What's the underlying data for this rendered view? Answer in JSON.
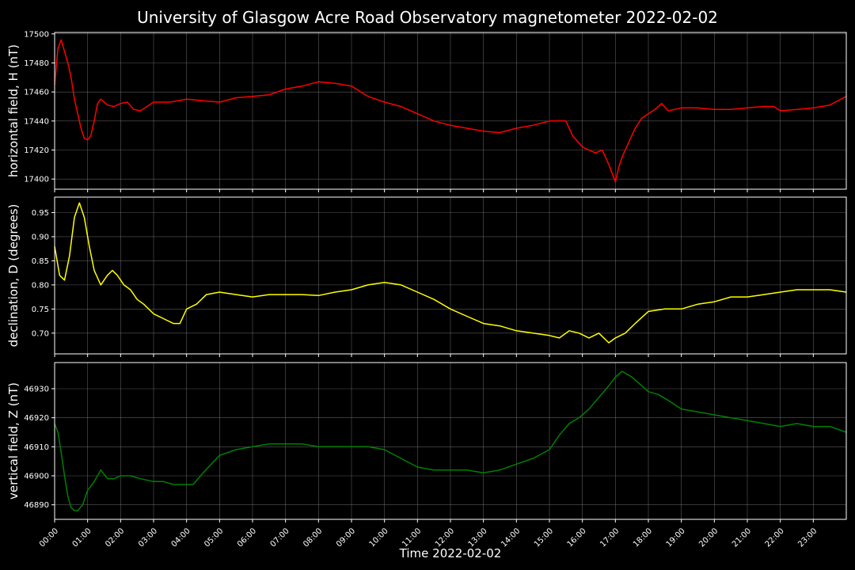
{
  "figure": {
    "title": "University of Glasgow Acre Road Observatory magnetometer 2022-02-02",
    "xlabel": "Time 2022-02-02",
    "background": "#000000",
    "grid_color": "#808080"
  },
  "chart_data": [
    {
      "type": "line",
      "ylabel": "horizontal field, H (nT)",
      "color": "#ff0000",
      "ylim": [
        17393,
        17501
      ],
      "yticks": [
        17400,
        17420,
        17440,
        17460,
        17480,
        17500
      ],
      "xlim": [
        0,
        24
      ],
      "grid": true,
      "series": [
        {
          "x": [
            0,
            0.1,
            0.2,
            0.3,
            0.4,
            0.5,
            0.6,
            0.7,
            0.8,
            0.9,
            1.0,
            1.1,
            1.2,
            1.3,
            1.4,
            1.5,
            1.6,
            1.8,
            2.0,
            2.2,
            2.4,
            2.6,
            2.8,
            3.0,
            3.5,
            4.0,
            4.5,
            5.0,
            5.5,
            6.0,
            6.5,
            7.0,
            7.5,
            8.0,
            8.5,
            9.0,
            9.5,
            10.0,
            10.5,
            11.0,
            11.5,
            12.0,
            12.5,
            13.0,
            13.5,
            14.0,
            14.5,
            15.0,
            15.3,
            15.5,
            15.7,
            16.0,
            16.2,
            16.4,
            16.6,
            16.8,
            17.0,
            17.1,
            17.2,
            17.4,
            17.6,
            17.8,
            18.0,
            18.2,
            18.4,
            18.6,
            19.0,
            19.5,
            20.0,
            20.5,
            21.0,
            21.5,
            21.8,
            22.0,
            22.5,
            23.0,
            23.5,
            24.0
          ],
          "values": [
            17465,
            17490,
            17496,
            17488,
            17480,
            17470,
            17455,
            17445,
            17435,
            17428,
            17427,
            17430,
            17440,
            17452,
            17455,
            17453,
            17451,
            17450,
            17452,
            17453,
            17448,
            17447,
            17450,
            17453,
            17453,
            17455,
            17454,
            17453,
            17456,
            17457,
            17458,
            17462,
            17464,
            17467,
            17466,
            17464,
            17457,
            17453,
            17450,
            17445,
            17440,
            17437,
            17435,
            17433,
            17432,
            17435,
            17437,
            17440,
            17440,
            17440,
            17430,
            17422,
            17420,
            17418,
            17420,
            17410,
            17398,
            17408,
            17415,
            17425,
            17435,
            17442,
            17445,
            17448,
            17452,
            17447,
            17449,
            17449,
            17448,
            17448,
            17449,
            17450,
            17450,
            17447,
            17448,
            17449,
            17451,
            17457
          ]
        }
      ]
    },
    {
      "type": "line",
      "ylabel": "declination, D (degrees)",
      "color": "#ffff00",
      "ylim": [
        0.657,
        0.982
      ],
      "yticks": [
        0.7,
        0.75,
        0.8,
        0.85,
        0.9,
        0.95
      ],
      "xlim": [
        0,
        24
      ],
      "grid": true,
      "series": [
        {
          "x": [
            0,
            0.15,
            0.3,
            0.45,
            0.6,
            0.75,
            0.9,
            1.05,
            1.2,
            1.4,
            1.6,
            1.75,
            1.9,
            2.1,
            2.3,
            2.5,
            2.7,
            3.0,
            3.3,
            3.6,
            3.8,
            4.0,
            4.3,
            4.6,
            5.0,
            5.5,
            6.0,
            6.5,
            7.0,
            7.5,
            8.0,
            8.5,
            9.0,
            9.5,
            10.0,
            10.5,
            11.0,
            11.5,
            12.0,
            12.5,
            13.0,
            13.5,
            14.0,
            14.5,
            15.0,
            15.3,
            15.6,
            15.9,
            16.2,
            16.5,
            16.8,
            17.0,
            17.3,
            17.6,
            18.0,
            18.5,
            19.0,
            19.5,
            20.0,
            20.5,
            21.0,
            21.5,
            22.0,
            22.5,
            23.0,
            23.5,
            24.0
          ],
          "values": [
            0.88,
            0.82,
            0.81,
            0.86,
            0.94,
            0.97,
            0.94,
            0.88,
            0.83,
            0.8,
            0.82,
            0.83,
            0.82,
            0.8,
            0.79,
            0.77,
            0.76,
            0.74,
            0.73,
            0.72,
            0.72,
            0.75,
            0.76,
            0.78,
            0.785,
            0.78,
            0.775,
            0.78,
            0.78,
            0.78,
            0.778,
            0.785,
            0.79,
            0.8,
            0.805,
            0.8,
            0.785,
            0.77,
            0.75,
            0.735,
            0.72,
            0.715,
            0.705,
            0.7,
            0.695,
            0.69,
            0.705,
            0.7,
            0.69,
            0.7,
            0.68,
            0.69,
            0.7,
            0.72,
            0.745,
            0.75,
            0.75,
            0.76,
            0.765,
            0.775,
            0.775,
            0.78,
            0.785,
            0.79,
            0.79,
            0.79,
            0.785
          ]
        }
      ]
    },
    {
      "type": "line",
      "ylabel": "vertical field, Z (nT)",
      "color": "#008000",
      "ylim": [
        46885,
        46939
      ],
      "yticks": [
        46890,
        46900,
        46910,
        46920,
        46930
      ],
      "xlim": [
        0,
        24
      ],
      "grid": true,
      "series": [
        {
          "x": [
            0,
            0.1,
            0.2,
            0.3,
            0.4,
            0.5,
            0.6,
            0.7,
            0.85,
            1.0,
            1.2,
            1.4,
            1.6,
            1.8,
            2.0,
            2.3,
            2.6,
            3.0,
            3.3,
            3.6,
            3.9,
            4.2,
            4.5,
            5.0,
            5.5,
            6.0,
            6.5,
            7.0,
            7.5,
            8.0,
            8.5,
            9.0,
            9.5,
            10.0,
            10.5,
            11.0,
            11.5,
            12.0,
            12.5,
            13.0,
            13.5,
            14.0,
            14.5,
            15.0,
            15.3,
            15.6,
            15.9,
            16.2,
            16.5,
            16.8,
            17.0,
            17.2,
            17.5,
            17.8,
            18.0,
            18.3,
            18.6,
            19.0,
            19.5,
            20.0,
            20.5,
            21.0,
            21.5,
            22.0,
            22.5,
            23.0,
            23.5,
            24.0
          ],
          "values": [
            46918,
            46915,
            46908,
            46900,
            46893,
            46889,
            46888,
            46888,
            46890,
            46895,
            46898,
            46902,
            46899,
            46899,
            46900,
            46900,
            46899,
            46898,
            46898,
            46897,
            46897,
            46897,
            46901,
            46907,
            46909,
            46910,
            46911,
            46911,
            46911,
            46910,
            46910,
            46910,
            46910,
            46909,
            46906,
            46903,
            46902,
            46902,
            46902,
            46901,
            46902,
            46904,
            46906,
            46909,
            46914,
            46918,
            46920,
            46923,
            46927,
            46931,
            46934,
            46936,
            46934,
            46931,
            46929,
            46928,
            46926,
            46923,
            46922,
            46921,
            46920,
            46919,
            46918,
            46917,
            46918,
            46917,
            46917,
            46915
          ]
        }
      ]
    }
  ],
  "x_axis": {
    "tick_labels": [
      "00:00",
      "01:00",
      "02:00",
      "03:00",
      "04:00",
      "05:00",
      "06:00",
      "07:00",
      "08:00",
      "09:00",
      "10:00",
      "11:00",
      "12:00",
      "13:00",
      "14:00",
      "15:00",
      "16:00",
      "17:00",
      "18:00",
      "19:00",
      "20:00",
      "21:00",
      "22:00",
      "23:00"
    ]
  }
}
